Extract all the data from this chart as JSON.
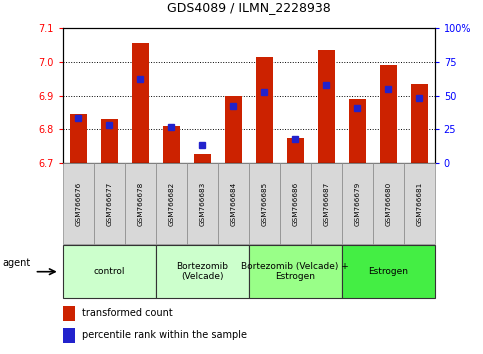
{
  "title": "GDS4089 / ILMN_2228938",
  "samples": [
    "GSM766676",
    "GSM766677",
    "GSM766678",
    "GSM766682",
    "GSM766683",
    "GSM766684",
    "GSM766685",
    "GSM766686",
    "GSM766687",
    "GSM766679",
    "GSM766680",
    "GSM766681"
  ],
  "red_values": [
    6.845,
    6.83,
    7.055,
    6.81,
    6.725,
    6.9,
    7.015,
    6.775,
    7.035,
    6.89,
    6.99,
    6.935
  ],
  "blue_values": [
    0.33,
    0.28,
    0.62,
    0.27,
    0.13,
    0.42,
    0.53,
    0.18,
    0.58,
    0.41,
    0.55,
    0.48
  ],
  "ylim_left": [
    6.7,
    7.1
  ],
  "ylim_right": [
    0,
    100
  ],
  "yticks_left": [
    6.7,
    6.8,
    6.9,
    7.0,
    7.1
  ],
  "yticks_right": [
    0,
    25,
    50,
    75,
    100
  ],
  "ytick_labels_right": [
    "0",
    "25",
    "50",
    "75",
    "100%"
  ],
  "bar_color": "#cc2200",
  "blue_color": "#2222cc",
  "group_defs": [
    {
      "start": 0,
      "end": 2,
      "label": "control",
      "color": "#ccffcc"
    },
    {
      "start": 3,
      "end": 5,
      "label": "Bortezomib\n(Velcade)",
      "color": "#ccffcc"
    },
    {
      "start": 6,
      "end": 8,
      "label": "Bortezomib (Velcade) +\nEstrogen",
      "color": "#99ff88"
    },
    {
      "start": 9,
      "end": 11,
      "label": "Estrogen",
      "color": "#44ee44"
    }
  ],
  "legend_items": [
    {
      "color": "#cc2200",
      "label": "transformed count"
    },
    {
      "color": "#2222cc",
      "label": "percentile rank within the sample"
    }
  ],
  "bar_width": 0.55,
  "blue_marker_size": 5
}
